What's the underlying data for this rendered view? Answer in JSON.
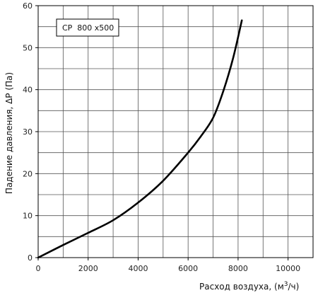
{
  "chart_data": {
    "type": "line",
    "title": "",
    "xlabel": "Расход воздуха, (м³/ч)",
    "xlabel_prefix": "Расход воздуха, (м",
    "xlabel_sup": "3",
    "xlabel_suffix": "/ч)",
    "ylabel": "Падение давления, ΔP (Па)",
    "xlim": [
      0,
      11000
    ],
    "ylim": [
      0,
      60
    ],
    "x_ticks": [
      0,
      2000,
      4000,
      6000,
      8000,
      10000
    ],
    "x_tick_labels": [
      "0",
      "2000",
      "4000",
      "6000",
      "8000",
      "10000"
    ],
    "y_ticks": [
      0,
      10,
      20,
      30,
      40,
      50,
      60
    ],
    "y_tick_labels": [
      "0",
      "10",
      "20",
      "30",
      "40",
      "50",
      "60"
    ],
    "x_grid_step": 1000,
    "y_grid_step": 5,
    "grid": true,
    "legend_position": "top-left",
    "series": [
      {
        "name": "CP  800 x500",
        "color": "#000000",
        "x": [
          0,
          1000,
          2000,
          3000,
          4000,
          5000,
          6000,
          6500,
          7000,
          7400,
          7800,
          8150
        ],
        "y": [
          0,
          3,
          5.9,
          8.9,
          13.1,
          18.3,
          25,
          28.8,
          33.3,
          39.5,
          47.5,
          56.5
        ]
      }
    ]
  }
}
